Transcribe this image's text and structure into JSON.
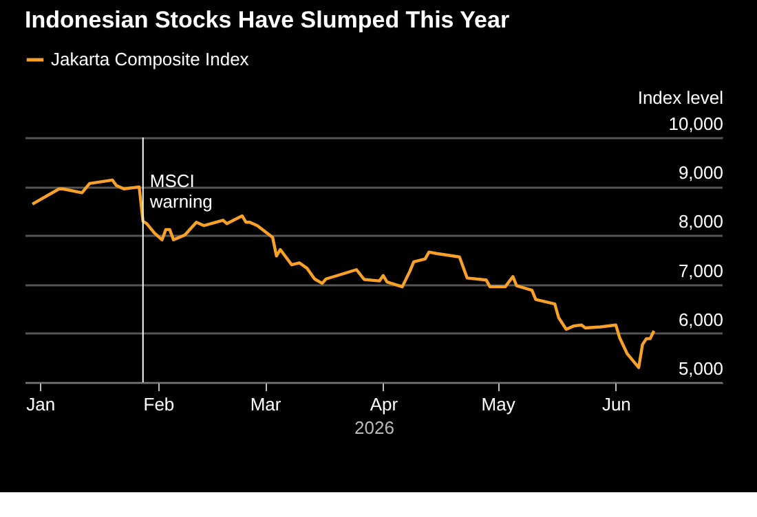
{
  "chart_data": {
    "type": "line",
    "title": "Indonesian Stocks Have Slumped This Year",
    "xlabel": "2026",
    "ylabel": "Index level",
    "legend": "top left",
    "grid": "y",
    "tick_labels": true,
    "x": [
      "2025-12-30",
      "2026-01-06",
      "2026-01-07",
      "2026-01-12",
      "2026-01-14",
      "2026-01-20",
      "2026-01-21",
      "2026-01-23",
      "2026-01-27",
      "2026-01-28",
      "2026-01-29",
      "2026-01-31",
      "2026-02-02",
      "2026-02-03",
      "2026-02-04",
      "2026-02-05",
      "2026-02-08",
      "2026-02-11",
      "2026-02-13",
      "2026-02-18",
      "2026-02-19",
      "2026-02-23",
      "2026-02-24",
      "2026-02-25",
      "2026-02-27",
      "2026-03-03",
      "2026-03-04",
      "2026-03-05",
      "2026-03-08",
      "2026-03-10",
      "2026-03-12",
      "2026-03-14",
      "2026-03-16",
      "2026-03-17",
      "2026-03-25",
      "2026-03-27",
      "2026-03-31",
      "2026-04-01",
      "2026-04-02",
      "2026-04-06",
      "2026-04-08",
      "2026-04-09",
      "2026-04-12",
      "2026-04-13",
      "2026-04-15",
      "2026-04-21",
      "2026-04-23",
      "2026-04-28",
      "2026-04-29",
      "2026-05-03",
      "2026-05-05",
      "2026-05-06",
      "2026-05-10",
      "2026-05-11",
      "2026-05-16",
      "2026-05-17",
      "2026-05-19",
      "2026-05-21",
      "2026-05-23",
      "2026-05-24",
      "2026-05-28",
      "2026-06-01",
      "2026-06-02",
      "2026-06-04",
      "2026-06-07",
      "2026-06-08",
      "2026-06-09",
      "2026-06-10",
      "2026-06-11"
    ],
    "series": [
      {
        "name": "Jakarta Composite Index",
        "color": "#f7a128",
        "values": [
          8640,
          8950,
          8950,
          8870,
          9060,
          9130,
          9020,
          8950,
          8990,
          8290,
          8240,
          8050,
          7910,
          8120,
          8120,
          7910,
          8010,
          8270,
          8200,
          8310,
          8240,
          8400,
          8270,
          8270,
          8200,
          7960,
          7580,
          7710,
          7400,
          7440,
          7330,
          7110,
          7020,
          7110,
          7300,
          7100,
          7070,
          7180,
          7050,
          6950,
          7270,
          7460,
          7520,
          7660,
          7630,
          7560,
          7130,
          7090,
          6950,
          6950,
          7160,
          6970,
          6880,
          6690,
          6600,
          6320,
          6080,
          6150,
          6170,
          6110,
          6130,
          6170,
          5910,
          5580,
          5300,
          5770,
          5890,
          5890,
          6050
        ]
      }
    ],
    "xlim": [
      "2025-12-28",
      "2026-06-29"
    ],
    "xticks": [
      {
        "value": "2026-01-01",
        "label": "Jan"
      },
      {
        "value": "2026-02-01",
        "label": "Feb"
      },
      {
        "value": "2026-03-01",
        "label": "Mar"
      },
      {
        "value": "2026-04-01",
        "label": "Apr"
      },
      {
        "value": "2026-05-01",
        "label": "May"
      },
      {
        "value": "2026-06-01",
        "label": "Jun"
      }
    ],
    "ylim": [
      5000,
      10000
    ],
    "yticks": [
      {
        "value": 5000,
        "label": "5,000"
      },
      {
        "value": 6000,
        "label": "6,000"
      },
      {
        "value": 7000,
        "label": "7,000"
      },
      {
        "value": 8000,
        "label": "8,000"
      },
      {
        "value": 9000,
        "label": "9,000"
      },
      {
        "value": 10000,
        "label": "10,000"
      }
    ],
    "ref_lines": [
      {
        "axis": "x",
        "value": "2026-01-28",
        "label": "MSCI warning",
        "color": "#ffffff"
      }
    ],
    "marker": "none",
    "line_style": "solid"
  }
}
